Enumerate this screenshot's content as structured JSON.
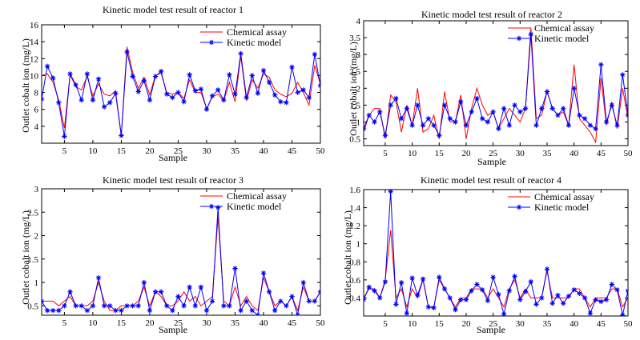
{
  "colors": {
    "assay": "#ff0000",
    "model": "#0000ff",
    "axis": "#000000",
    "background": "#ffffff"
  },
  "chart_data": [
    {
      "type": "line",
      "title": "Kinetic model test result of reactor 1",
      "xlabel": "Sample",
      "ylabel": "Outlet cobalt ion (mg/L)",
      "xlim": [
        1,
        50
      ],
      "ylim": [
        2,
        16
      ],
      "xticks": [
        5,
        10,
        15,
        20,
        25,
        30,
        35,
        40,
        45,
        50
      ],
      "yticks": [
        4,
        6,
        8,
        10,
        12,
        14,
        16
      ],
      "legend_position": "top-right",
      "x": [
        1,
        2,
        3,
        4,
        5,
        6,
        7,
        8,
        9,
        10,
        11,
        12,
        13,
        14,
        15,
        16,
        17,
        18,
        19,
        20,
        21,
        22,
        23,
        24,
        25,
        26,
        27,
        28,
        29,
        30,
        31,
        32,
        33,
        34,
        35,
        36,
        37,
        38,
        39,
        40,
        41,
        42,
        43,
        44,
        45,
        46,
        47,
        48,
        49,
        50
      ],
      "series": [
        {
          "name": "Chemical assay",
          "marker": "none",
          "values": [
            10.0,
            10.2,
            9.2,
            7.1,
            3.8,
            10.1,
            8.7,
            8.3,
            9.9,
            7.6,
            9.0,
            7.8,
            7.6,
            8.2,
            2.9,
            13.4,
            10.4,
            8.5,
            9.8,
            7.7,
            10.0,
            10.3,
            8.0,
            7.8,
            8.0,
            7.3,
            9.5,
            8.0,
            8.0,
            6.1,
            7.5,
            7.8,
            7.0,
            9.2,
            6.9,
            12.3,
            7.0,
            9.5,
            8.5,
            10.2,
            9.8,
            8.3,
            7.8,
            7.5,
            7.9,
            9.2,
            8.0,
            6.5,
            11.2,
            9.0
          ]
        },
        {
          "name": "Kinetic model",
          "marker": "star",
          "values": [
            7.2,
            11.1,
            9.7,
            6.8,
            2.8,
            10.2,
            8.9,
            7.1,
            10.2,
            7.1,
            9.6,
            6.3,
            6.8,
            7.9,
            2.9,
            12.8,
            9.9,
            8.1,
            9.4,
            7.1,
            9.9,
            10.5,
            7.8,
            7.4,
            8.0,
            6.9,
            10.1,
            8.2,
            8.4,
            6.0,
            7.6,
            8.3,
            7.1,
            10.1,
            7.8,
            12.6,
            7.4,
            10.0,
            7.9,
            10.6,
            9.2,
            7.7,
            6.9,
            6.8,
            11.0,
            8.0,
            8.3,
            7.4,
            12.5,
            8.8
          ]
        }
      ]
    },
    {
      "type": "line",
      "title": "Kinetic model test result of reactor 2",
      "xlabel": "Sample",
      "ylabel": "Outlet cobalt ion (mg/L)",
      "xlim": [
        1,
        50
      ],
      "ylim": [
        0.3,
        4
      ],
      "xticks": [
        5,
        10,
        15,
        20,
        25,
        30,
        35,
        40,
        45,
        50
      ],
      "yticks": [
        0.5,
        1,
        1.5,
        2,
        2.5,
        3,
        3.5,
        4
      ],
      "legend_position": "top-right",
      "x": [
        1,
        2,
        3,
        4,
        5,
        6,
        7,
        8,
        9,
        10,
        11,
        12,
        13,
        14,
        15,
        16,
        17,
        18,
        19,
        20,
        21,
        22,
        23,
        24,
        25,
        26,
        27,
        28,
        29,
        30,
        31,
        32,
        33,
        34,
        35,
        36,
        37,
        38,
        39,
        40,
        41,
        42,
        43,
        44,
        45,
        46,
        47,
        48,
        49,
        50
      ],
      "series": [
        {
          "name": "Chemical assay",
          "marker": "none",
          "values": [
            0.7,
            1.2,
            1.4,
            1.4,
            0.5,
            1.8,
            1.6,
            0.7,
            1.5,
            0.9,
            2.0,
            0.7,
            0.8,
            1.2,
            0.5,
            1.9,
            1.0,
            1.0,
            1.8,
            0.5,
            1.4,
            2.0,
            1.5,
            1.2,
            1.3,
            0.8,
            1.1,
            1.4,
            1.2,
            1.0,
            1.4,
            3.8,
            1.1,
            1.2,
            1.9,
            1.4,
            1.2,
            1.3,
            0.9,
            2.7,
            1.1,
            0.9,
            0.7,
            0.4,
            2.3,
            0.9,
            1.6,
            0.8,
            2.0,
            1.1
          ]
        },
        {
          "name": "Kinetic model",
          "marker": "star",
          "values": [
            0.8,
            1.2,
            1.0,
            1.3,
            0.6,
            1.5,
            1.7,
            1.1,
            1.4,
            0.9,
            1.5,
            0.9,
            1.1,
            0.9,
            0.6,
            1.5,
            1.1,
            1.0,
            1.6,
            0.9,
            1.3,
            1.7,
            1.1,
            1.0,
            1.3,
            0.8,
            1.4,
            0.9,
            1.5,
            1.3,
            1.4,
            3.6,
            0.9,
            1.4,
            1.9,
            1.4,
            1.2,
            1.4,
            0.9,
            2.0,
            1.2,
            1.1,
            0.9,
            0.8,
            2.7,
            1.0,
            1.5,
            0.9,
            2.4,
            1.2
          ]
        }
      ]
    },
    {
      "type": "line",
      "title": "Kinetic model test result of reactor 3",
      "xlabel": "Sample",
      "ylabel": "Outlet cobalt ion (mg/L)",
      "xlim": [
        1,
        50
      ],
      "ylim": [
        0.3,
        3
      ],
      "xticks": [
        5,
        10,
        15,
        20,
        25,
        30,
        35,
        40,
        45,
        50
      ],
      "yticks": [
        0.5,
        1,
        1.5,
        2,
        2.5,
        3
      ],
      "legend_position": "top-right",
      "x": [
        1,
        2,
        3,
        4,
        5,
        6,
        7,
        8,
        9,
        10,
        11,
        12,
        13,
        14,
        15,
        16,
        17,
        18,
        19,
        20,
        21,
        22,
        23,
        24,
        25,
        26,
        27,
        28,
        29,
        30,
        31,
        32,
        33,
        34,
        35,
        36,
        37,
        38,
        39,
        40,
        41,
        42,
        43,
        44,
        45,
        46,
        47,
        48,
        49,
        50
      ],
      "series": [
        {
          "name": "Chemical assay",
          "marker": "none",
          "values": [
            0.6,
            0.6,
            0.6,
            0.5,
            0.6,
            0.7,
            0.5,
            0.5,
            0.5,
            0.6,
            1.0,
            0.6,
            0.4,
            0.4,
            0.5,
            0.5,
            0.5,
            0.6,
            0.9,
            0.5,
            0.8,
            0.7,
            0.5,
            0.5,
            0.6,
            0.8,
            0.6,
            0.7,
            0.5,
            0.6,
            0.7,
            2.4,
            0.6,
            0.5,
            0.9,
            0.5,
            0.7,
            0.5,
            0.4,
            1.1,
            0.8,
            0.5,
            0.6,
            0.5,
            0.7,
            0.4,
            0.9,
            0.6,
            0.6,
            0.8
          ]
        },
        {
          "name": "Kinetic model",
          "marker": "star",
          "values": [
            0.6,
            0.4,
            0.4,
            0.4,
            0.5,
            0.8,
            0.5,
            0.5,
            0.4,
            0.5,
            1.1,
            0.5,
            0.5,
            0.4,
            0.4,
            0.5,
            0.5,
            0.5,
            1.0,
            0.4,
            0.8,
            0.8,
            0.5,
            0.4,
            0.7,
            0.5,
            0.9,
            0.5,
            0.9,
            0.4,
            0.6,
            2.6,
            0.5,
            0.5,
            1.3,
            0.4,
            0.6,
            0.4,
            0.3,
            1.2,
            0.8,
            0.4,
            0.6,
            0.5,
            0.7,
            0.3,
            1.0,
            0.6,
            0.6,
            0.8
          ]
        }
      ]
    },
    {
      "type": "line",
      "title": "Kinetic model test result of reactor 4",
      "xlabel": "Sample",
      "ylabel": "Outlet cobalt ion (mg/L)",
      "xlim": [
        1,
        50
      ],
      "ylim": [
        0.2,
        1.6
      ],
      "xticks": [
        5,
        10,
        15,
        20,
        25,
        30,
        35,
        40,
        45,
        50
      ],
      "yticks": [
        0.4,
        0.6,
        0.8,
        1,
        1.2,
        1.4,
        1.6
      ],
      "legend_position": "top-right",
      "x": [
        1,
        2,
        3,
        4,
        5,
        6,
        7,
        8,
        9,
        10,
        11,
        12,
        13,
        14,
        15,
        16,
        17,
        18,
        19,
        20,
        21,
        22,
        23,
        24,
        25,
        26,
        27,
        28,
        29,
        30,
        31,
        32,
        33,
        34,
        35,
        36,
        37,
        38,
        39,
        40,
        41,
        42,
        43,
        44,
        45,
        46,
        47,
        48,
        49,
        50
      ],
      "series": [
        {
          "name": "Chemical assay",
          "marker": "none",
          "values": [
            0.4,
            0.5,
            0.5,
            0.4,
            0.6,
            1.15,
            0.4,
            0.5,
            0.3,
            0.5,
            0.4,
            0.6,
            0.3,
            0.3,
            0.6,
            0.5,
            0.4,
            0.3,
            0.4,
            0.4,
            0.5,
            0.5,
            0.5,
            0.4,
            0.5,
            0.4,
            0.3,
            0.5,
            0.6,
            0.4,
            0.5,
            0.4,
            0.4,
            0.4,
            0.7,
            0.4,
            0.4,
            0.4,
            0.4,
            0.5,
            0.5,
            0.4,
            0.3,
            0.4,
            0.4,
            0.4,
            0.5,
            0.5,
            0.3,
            0.4
          ]
        },
        {
          "name": "Kinetic model",
          "marker": "star",
          "values": [
            0.38,
            0.52,
            0.48,
            0.4,
            0.58,
            1.58,
            0.33,
            0.57,
            0.23,
            0.62,
            0.43,
            0.61,
            0.3,
            0.29,
            0.63,
            0.5,
            0.4,
            0.27,
            0.38,
            0.38,
            0.48,
            0.55,
            0.49,
            0.37,
            0.63,
            0.44,
            0.22,
            0.48,
            0.64,
            0.38,
            0.47,
            0.58,
            0.33,
            0.4,
            0.72,
            0.34,
            0.43,
            0.34,
            0.42,
            0.49,
            0.45,
            0.4,
            0.23,
            0.38,
            0.36,
            0.38,
            0.55,
            0.49,
            0.21,
            0.48
          ]
        }
      ]
    }
  ]
}
